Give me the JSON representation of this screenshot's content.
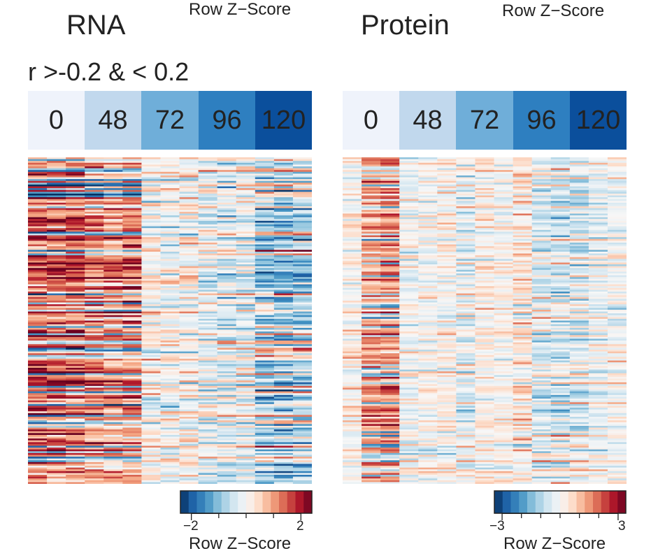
{
  "chart_data": [
    {
      "type": "heatmap",
      "title": "RNA",
      "subtitle": "r >-0.2 & < 0.2",
      "top_legend_title": "Row Z−Score",
      "timepoints": [
        "0",
        "48",
        "72",
        "96",
        "120"
      ],
      "timepoint_colors": [
        "#eff3fb",
        "#c1d8ed",
        "#6faed9",
        "#2e7fc0",
        "#0b4f9c"
      ],
      "columns_per_timepoint": 3,
      "rows": 180,
      "scale": {
        "title": "Row Z−Score",
        "min": -2.4,
        "max": 2.4,
        "tick_labels": [
          "−2",
          "2"
        ],
        "tick_values": [
          -2,
          2
        ],
        "colors": [
          "#053061",
          "#2166ac",
          "#4393c3",
          "#92c5de",
          "#d1e5f0",
          "#f7f7f7",
          "#fddbc7",
          "#f4a582",
          "#d6604d",
          "#b2182b",
          "#67001f"
        ]
      },
      "column_trend": [
        0.75,
        0.7,
        0.72,
        0.6,
        0.55,
        0.6,
        0.05,
        0.0,
        0.05,
        -0.15,
        -0.2,
        -0.15,
        -0.45,
        -0.5,
        -0.45
      ]
    },
    {
      "type": "heatmap",
      "title": "Protein",
      "top_legend_title": "Row Z−Score",
      "timepoints": [
        "0",
        "48",
        "72",
        "96",
        "120"
      ],
      "timepoint_colors": [
        "#eff3fb",
        "#c1d8ed",
        "#6faed9",
        "#2e7fc0",
        "#0b4f9c"
      ],
      "columns_per_timepoint": 3,
      "rows": 180,
      "scale": {
        "title": "Row Z−Score",
        "min": -3.4,
        "max": 3.4,
        "tick_labels": [
          "−3",
          "3"
        ],
        "tick_values": [
          -3,
          3
        ],
        "colors": [
          "#053061",
          "#2166ac",
          "#4393c3",
          "#92c5de",
          "#d1e5f0",
          "#f7f7f7",
          "#fddbc7",
          "#f4a582",
          "#d6604d",
          "#b2182b",
          "#67001f"
        ]
      },
      "column_trend": [
        0.1,
        0.7,
        0.8,
        -0.1,
        0.0,
        0.1,
        -0.3,
        0.1,
        0.0,
        0.3,
        -0.3,
        -0.4,
        -0.4,
        -0.2,
        -0.1
      ]
    }
  ]
}
